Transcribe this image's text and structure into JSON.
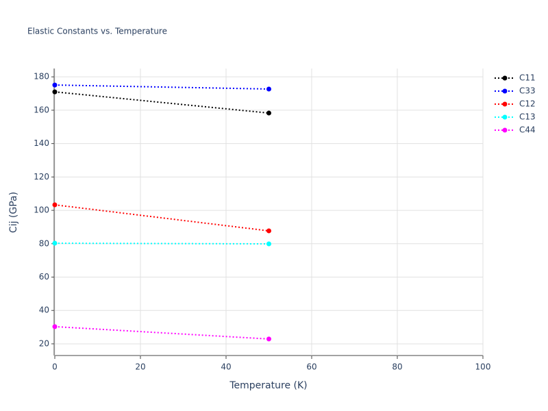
{
  "chart_data": {
    "type": "line",
    "title": "Elastic Constants vs. Temperature",
    "x_label": "Temperature (K)",
    "y_label": "Cij (GPa)",
    "x": [
      0,
      50
    ],
    "series": [
      {
        "name": "C11",
        "color": "#000000",
        "values": [
          171,
          158.3
        ]
      },
      {
        "name": "C33",
        "color": "#0000ff",
        "values": [
          175.1,
          172.7
        ]
      },
      {
        "name": "C12",
        "color": "#ff0000",
        "values": [
          103.3,
          87.7
        ]
      },
      {
        "name": "C13",
        "color": "#00ffff",
        "values": [
          80.3,
          79.9
        ]
      },
      {
        "name": "C44",
        "color": "#ff00ff",
        "values": [
          30.3,
          22.9
        ]
      }
    ],
    "xlim": [
      0,
      100
    ],
    "xticks": [
      0,
      20,
      40,
      60,
      80,
      100
    ],
    "ylim": [
      13,
      185
    ],
    "yticks": [
      20,
      40,
      60,
      80,
      100,
      120,
      140,
      160,
      180
    ],
    "grid": true,
    "legend": "right"
  }
}
